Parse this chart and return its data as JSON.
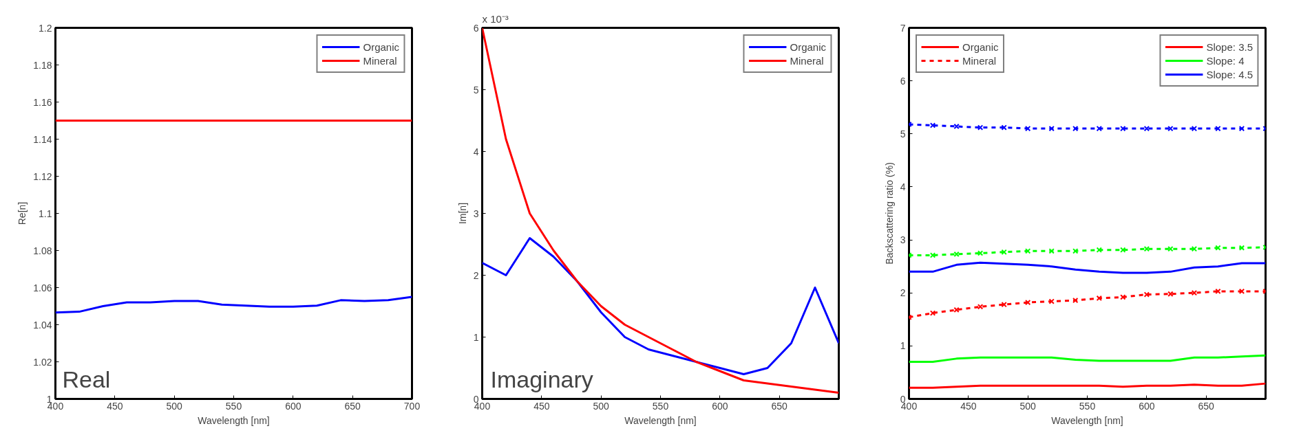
{
  "chart_data": [
    {
      "type": "line",
      "xlabel": "Wavelength [nm]",
      "ylabel": "Re[n]",
      "annotations": [
        "Real"
      ],
      "x": [
        400,
        420,
        440,
        460,
        480,
        500,
        520,
        540,
        560,
        580,
        600,
        620,
        640,
        660,
        680,
        700
      ],
      "series": [
        {
          "name": "Organic",
          "color": "#0000ff",
          "values": [
            1.0466,
            1.047,
            1.05,
            1.052,
            1.052,
            1.0528,
            1.0528,
            1.0508,
            1.0503,
            1.0497,
            1.0497,
            1.0503,
            1.0532,
            1.0528,
            1.0532,
            1.055
          ]
        },
        {
          "name": "Mineral",
          "color": "#ff0000",
          "values": [
            1.15,
            1.15,
            1.15,
            1.15,
            1.15,
            1.15,
            1.15,
            1.15,
            1.15,
            1.15,
            1.15,
            1.15,
            1.15,
            1.15,
            1.15,
            1.15
          ]
        }
      ],
      "xlim": [
        400,
        700
      ],
      "xticks": [
        400,
        450,
        500,
        550,
        600,
        650,
        700
      ],
      "ylim": [
        1,
        1.2
      ],
      "yticks": [
        1,
        1.02,
        1.04,
        1.06,
        1.08,
        1.1,
        1.12,
        1.14,
        1.16,
        1.18,
        1.2
      ],
      "grid": false,
      "legend": "top right",
      "line_style": "solid"
    },
    {
      "type": "line",
      "xlabel": "Wavelength [nm]",
      "ylabel": "Im[n]",
      "annotations": [
        "x 10⁻³",
        "Imaginary"
      ],
      "x": [
        400,
        420,
        440,
        460,
        480,
        500,
        520,
        540,
        560,
        580,
        600,
        620,
        640,
        660,
        680,
        700
      ],
      "series": [
        {
          "name": "Organic",
          "color": "#0000ff",
          "values": [
            2.2,
            2.0,
            2.6,
            2.3,
            1.9,
            1.4,
            1.0,
            0.8,
            0.7,
            0.6,
            0.5,
            0.4,
            0.5,
            0.9,
            1.8,
            0.9
          ]
        },
        {
          "name": "Mineral",
          "color": "#ff0000",
          "values": [
            6.0,
            4.2,
            3.0,
            2.4,
            1.9,
            1.5,
            1.2,
            1.0,
            0.8,
            0.6,
            0.45,
            0.3,
            0.25,
            0.2,
            0.15,
            0.1
          ]
        }
      ],
      "xlim": [
        400,
        700
      ],
      "xticks": [
        400,
        450,
        500,
        550,
        600,
        650
      ],
      "ylim": [
        0,
        6
      ],
      "yticks": [
        0,
        1,
        2,
        3,
        4,
        5,
        6
      ],
      "grid": false,
      "legend": "top right",
      "line_style": "solid"
    },
    {
      "type": "line",
      "xlabel": "Wavelength [nm]",
      "ylabel": "Backscattering ratio (%)",
      "annotations": [
        "Organic",
        "Mineral"
      ],
      "x": [
        400,
        420,
        440,
        460,
        480,
        500,
        520,
        540,
        560,
        580,
        600,
        620,
        640,
        660,
        680,
        700
      ],
      "series": [
        {
          "name": "Slope: 3.5",
          "color": "#ff0000",
          "line_style": "solid",
          "marker": "none",
          "values": [
            0.21,
            0.21,
            0.23,
            0.25,
            0.25,
            0.25,
            0.25,
            0.25,
            0.25,
            0.23,
            0.25,
            0.25,
            0.27,
            0.25,
            0.25,
            0.29
          ]
        },
        {
          "name": "Slope: 4",
          "color": "#00ff00",
          "line_style": "solid",
          "marker": "none",
          "values": [
            0.7,
            0.7,
            0.76,
            0.78,
            0.78,
            0.78,
            0.78,
            0.74,
            0.72,
            0.72,
            0.72,
            0.72,
            0.78,
            0.78,
            0.8,
            0.82
          ]
        },
        {
          "name": "Slope: 4.5",
          "color": "#0000ff",
          "line_style": "solid",
          "marker": "none",
          "values": [
            2.4,
            2.4,
            2.53,
            2.57,
            2.55,
            2.53,
            2.5,
            2.44,
            2.4,
            2.38,
            2.38,
            2.4,
            2.48,
            2.5,
            2.56,
            2.56
          ]
        },
        {
          "color": "#ff0000",
          "line_style": "dashed",
          "marker": "cross",
          "values": [
            1.54,
            1.62,
            1.68,
            1.74,
            1.78,
            1.82,
            1.84,
            1.86,
            1.9,
            1.92,
            1.97,
            1.98,
            2.0,
            2.03,
            2.03,
            2.03
          ]
        },
        {
          "color": "#00ff00",
          "line_style": "dashed",
          "marker": "cross",
          "values": [
            2.71,
            2.71,
            2.73,
            2.75,
            2.77,
            2.79,
            2.79,
            2.79,
            2.81,
            2.81,
            2.83,
            2.83,
            2.83,
            2.85,
            2.85,
            2.86
          ]
        },
        {
          "color": "#0000ff",
          "line_style": "dashed",
          "marker": "cross",
          "values": [
            5.18,
            5.16,
            5.14,
            5.12,
            5.12,
            5.1,
            5.1,
            5.1,
            5.1,
            5.1,
            5.1,
            5.1,
            5.1,
            5.1,
            5.1,
            5.1
          ]
        }
      ],
      "xlim": [
        400,
        700
      ],
      "xticks": [
        400,
        450,
        500,
        550,
        600,
        650
      ],
      "ylim": [
        0,
        7
      ],
      "yticks": [
        0,
        1,
        2,
        3,
        4,
        5,
        6,
        7
      ],
      "grid": false,
      "legend": "top right"
    }
  ]
}
